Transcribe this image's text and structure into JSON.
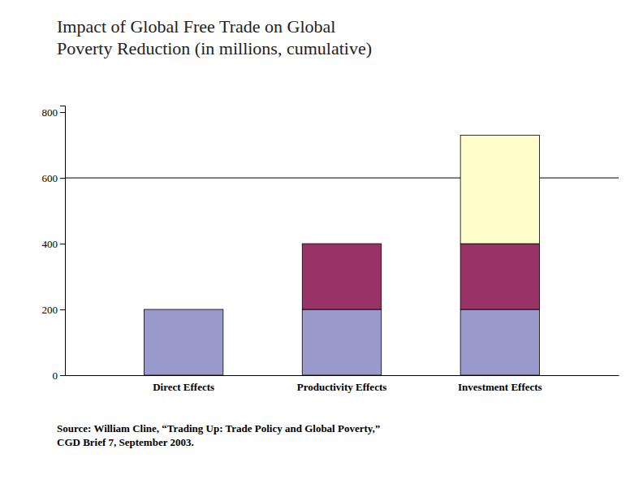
{
  "chart_data": {
    "type": "bar",
    "stacked": true,
    "grid": false,
    "title": "Impact of Global Free Trade on Global\nPoverty Reduction (in millions, cumulative)",
    "categories": [
      "Direct Effects",
      "Productivity Effects",
      "Investment Effects"
    ],
    "series": [
      {
        "color": "#9999CC",
        "values": [
          200,
          200,
          200
        ]
      },
      {
        "color": "#993366",
        "values": [
          0,
          200,
          200
        ]
      },
      {
        "color": "#FFFFCC",
        "values": [
          0,
          0,
          330
        ]
      }
    ],
    "ylim": [
      0,
      820
    ],
    "yticks": [
      0,
      200,
      400,
      600,
      800
    ],
    "reference_lines": [
      600
    ],
    "annotations": [
      "Source: William Cline, “Trading Up: Trade Policy and Global Poverty,”\nCGD Brief 7, September 2003."
    ]
  }
}
